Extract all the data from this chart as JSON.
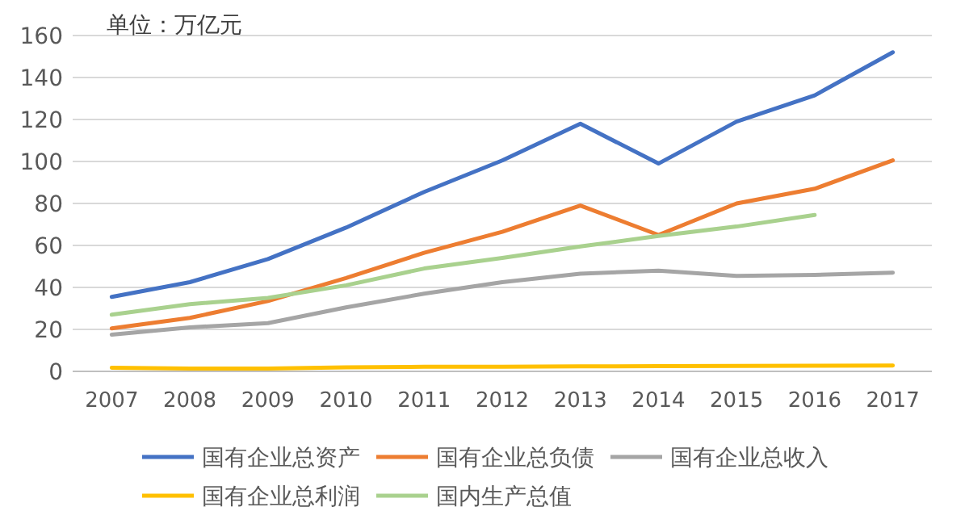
{
  "chart_data": {
    "type": "line",
    "ylabel": "单位：万亿元",
    "categories": [
      "2007",
      "2008",
      "2009",
      "2010",
      "2011",
      "2012",
      "2013",
      "2014",
      "2015",
      "2016",
      "2017"
    ],
    "series": [
      {
        "name": "国有企业总资产",
        "color": "#4472c4",
        "values": [
          35.5,
          42.5,
          53.5,
          68.5,
          85.5,
          100.5,
          118,
          99,
          119,
          131.5,
          152
        ]
      },
      {
        "name": "国有企业总负债",
        "color": "#ed7d31",
        "values": [
          20.5,
          25.5,
          33.5,
          44.5,
          56.5,
          66.5,
          79,
          65,
          80,
          87,
          100.5
        ]
      },
      {
        "name": "国有企业总收入",
        "color": "#a5a5a5",
        "values": [
          17.5,
          21,
          23,
          30.5,
          37,
          42.5,
          46.5,
          48,
          45.5,
          46,
          47
        ]
      },
      {
        "name": "国有企业总利润",
        "color": "#ffc000",
        "values": [
          1.7,
          1.3,
          1.3,
          1.9,
          2.2,
          2.2,
          2.4,
          2.5,
          2.6,
          2.7,
          2.8
        ]
      },
      {
        "name": "国内生产总值",
        "color": "#a9d18e",
        "values": [
          27,
          32,
          35,
          41,
          49,
          54,
          59.5,
          64.5,
          69,
          74.5,
          null
        ]
      }
    ],
    "ylim": [
      0,
      160
    ],
    "yticks": [
      0,
      20,
      40,
      60,
      80,
      100,
      120,
      140,
      160
    ],
    "grid": "y",
    "legend": "bottom",
    "marker": "none",
    "line_style": "solid"
  }
}
